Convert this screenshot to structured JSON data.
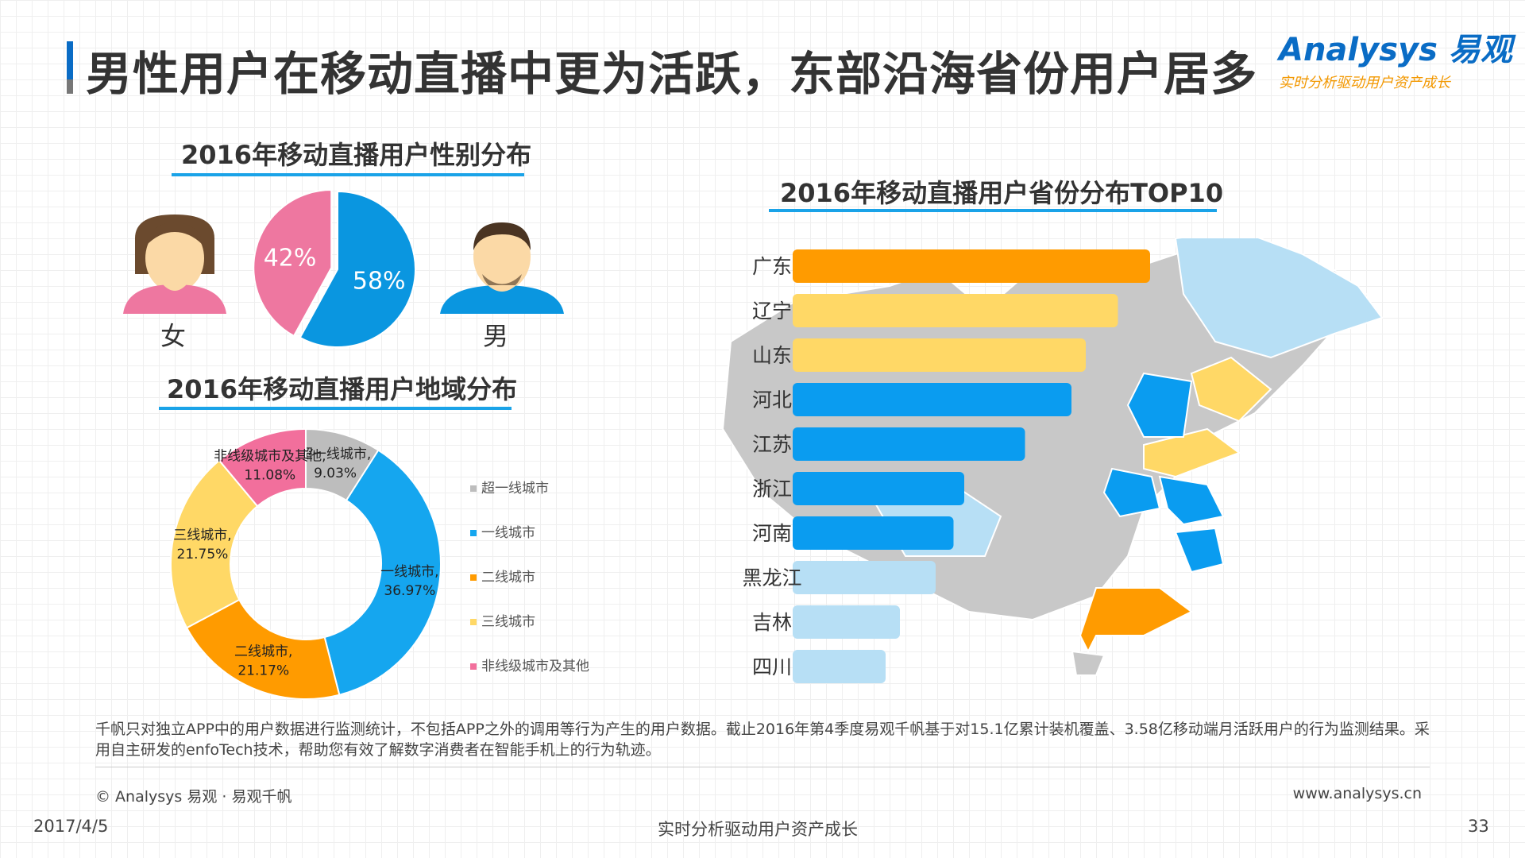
{
  "header": {
    "title": "男性用户在移动直播中更为活跃，东部沿海省份用户居多",
    "logo_main": "Analysys 易观",
    "logo_sub": "实时分析驱动用户资产成长"
  },
  "colors": {
    "female": "#ee77a0",
    "male": "#0a96e0",
    "tier_super": "#bdbdbd",
    "tier_1": "#15a6ef",
    "tier_2": "#ff9b00",
    "tier_3": "#ffd866",
    "tier_other": "#f26f9c",
    "bar_orange": "#ff9b00",
    "bar_yellow": "#ffd866",
    "bar_blue": "#0a9cf0",
    "bar_light": "#b7dff5",
    "map_gray": "#c8c8c8"
  },
  "gender": {
    "female_label": "女",
    "male_label": "男"
  },
  "chart_data": [
    {
      "type": "pie",
      "title": "2016年移动直播用户性别分布",
      "categories": [
        "女",
        "男"
      ],
      "values": [
        42,
        58
      ],
      "value_labels": [
        "42%",
        "58%"
      ]
    },
    {
      "type": "pie",
      "title": "2016年移动直播用户地域分布",
      "categories": [
        "超一线城市",
        "一线城市",
        "二线城市",
        "三线城市",
        "非线级城市及其他"
      ],
      "values": [
        9.03,
        36.97,
        21.17,
        21.75,
        11.08
      ],
      "slice_labels": [
        {
          "name": "超一线城市,",
          "pct": "9.03%"
        },
        {
          "name": "一线城市,",
          "pct": "36.97%"
        },
        {
          "name": "二线城市,",
          "pct": "21.17%"
        },
        {
          "name": "三线城市,",
          "pct": "21.75%"
        },
        {
          "name": "非线级城市及其他,",
          "pct": "11.08%"
        }
      ],
      "legend": [
        "超一线城市",
        "一线城市",
        "二线城市",
        "三线城市",
        "非线级城市及其他"
      ],
      "legend_position": "right"
    },
    {
      "type": "bar",
      "title": "2016年移动直播用户省份分布TOP10",
      "orientation": "horizontal",
      "categories": [
        "广东",
        "辽宁",
        "山东",
        "河北",
        "江苏",
        "浙江",
        "河南",
        "黑龙江",
        "吉林",
        "四川"
      ],
      "values": [
        100,
        91,
        82,
        78,
        65,
        48,
        45,
        40,
        30,
        26
      ],
      "value_unit": "relative"
    }
  ],
  "footnote": "千帆只对独立APP中的用户数据进行监测统计，不包括APP之外的调用等行为产生的用户数据。截止2016年第4季度易观千帆基于对15.1亿累计装机覆盖、3.58亿移动端月活跃用户的行为监测结果。采用自主研发的enfoTech技术，帮助您有效了解数字消费者在智能手机上的行为轨迹。",
  "copyright": "© Analysys 易观 · 易观千帆",
  "website": "www.analysys.cn",
  "footer": {
    "date": "2017/4/5",
    "slogan": "实时分析驱动用户资产成长",
    "page": "33"
  }
}
